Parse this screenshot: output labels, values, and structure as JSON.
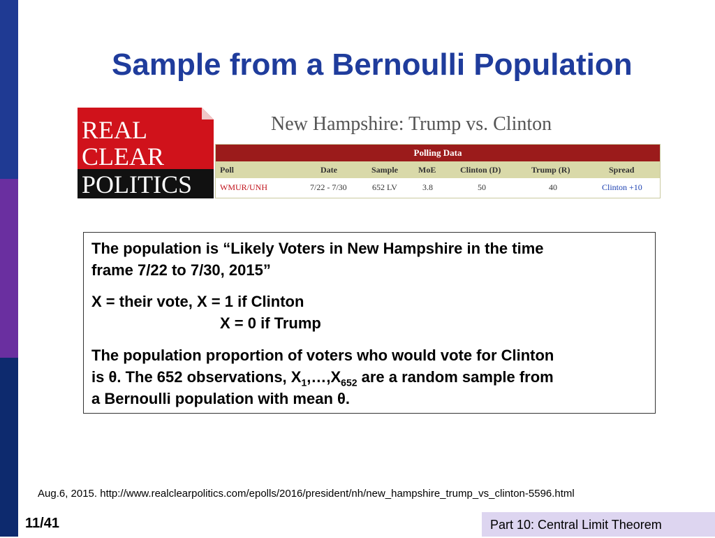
{
  "colors": {
    "sidebar_top": "#1f3a93",
    "sidebar_middle": "#6a2fa0",
    "sidebar_bottom": "#0d2a6e",
    "title": "#1f3c9c",
    "logo_red": "#d0121b",
    "table_header": "#9b1b1b",
    "table_cols": "#d9d9a9",
    "footer_box": "#ddd5f0"
  },
  "slide": {
    "title": "Sample from a Bernoulli Population"
  },
  "logo": {
    "line1": "REAL",
    "line2": "CLEAR",
    "line3": "POLITICS"
  },
  "poll": {
    "heading": "New Hampshire: Trump vs. Clinton",
    "table_title": "Polling Data",
    "columns": [
      "Poll",
      "Date",
      "Sample",
      "MoE",
      "Clinton (D)",
      "Trump (R)",
      "Spread"
    ],
    "rows": [
      [
        "WMUR/UNH",
        "7/22 - 7/30",
        "652 LV",
        "3.8",
        "50",
        "40",
        "Clinton +10"
      ]
    ]
  },
  "box": {
    "line1": "The population is “Likely Voters in New Hampshire in the time",
    "line2": "frame 7/22 to 7/30, 2015”",
    "line3": "X = their vote,  X  =  1 if Clinton",
    "line4": "X  =  0 if Trump",
    "line5": "The population proportion of voters who would vote for Clinton",
    "line6_a": "is θ.  The 652 observations, X",
    "line6_sub1": "1",
    "line6_b": ",…,X",
    "line6_sub2": "652",
    "line6_c": " are a random sample from",
    "line7": "a Bernoulli population with mean θ."
  },
  "footer": {
    "source": "Aug.6, 2015.   http://www.realclearpolitics.com/epolls/2016/president/nh/new_hampshire_trump_vs_clinton-5596.html",
    "page": "11/41",
    "part": "Part 10: Central Limit Theorem"
  }
}
